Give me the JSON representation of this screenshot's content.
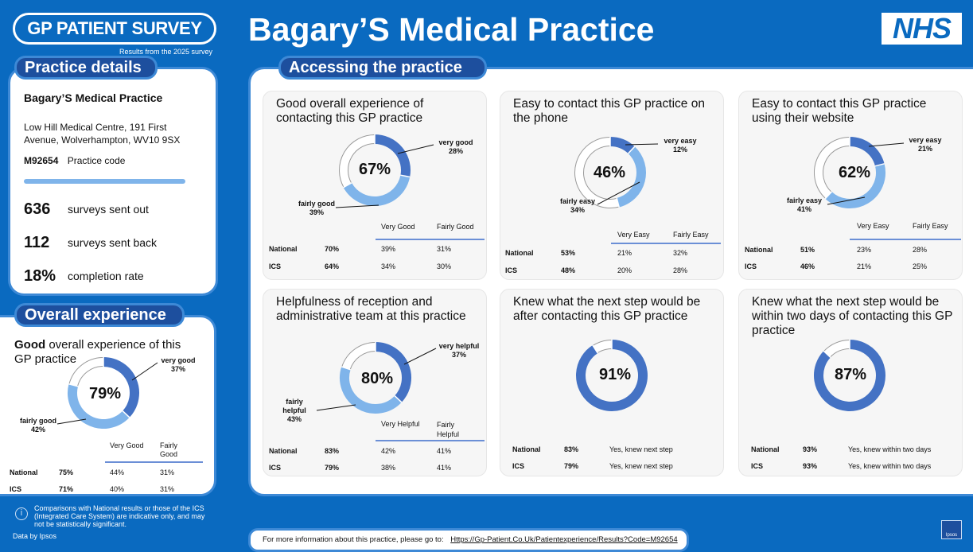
{
  "header": {
    "logo_text": "GP PATIENT SURVEY",
    "logo_sub": "Results from the 2025 survey",
    "title": "Bagary’S Medical Practice",
    "nhs_logo": "NHS"
  },
  "practice_details": {
    "tab": "Practice details",
    "name": "Bagary’S Medical Practice",
    "address_line1": "Low Hill Medical Centre, 191 First",
    "address_line2": "Avenue, Wolverhampton, WV10 9SX",
    "code": "M92654",
    "code_label": "Practice code",
    "stats": [
      {
        "value": "636",
        "label": "surveys sent out"
      },
      {
        "value": "112",
        "label": "surveys sent back"
      },
      {
        "value": "18%",
        "label": "completion rate"
      }
    ]
  },
  "overall": {
    "tab": "Overall experience",
    "title_bold": "Good",
    "title_rest": " overall experience of this",
    "title_line2": "GP practice",
    "pct": "79%",
    "pct_value": 79,
    "seg1_label": "very good",
    "seg1_pct": "37%",
    "seg1_value": 37,
    "seg2_label": "fairly good",
    "seg2_pct": "42%",
    "seg2_value": 42,
    "col1": "Very Good",
    "col2a": "Fairly",
    "col2b": "Good",
    "rows": [
      {
        "label": "National",
        "total": "75%",
        "c1": "44%",
        "c2": "31%"
      },
      {
        "label": "ICS",
        "total": "71%",
        "c1": "40%",
        "c2": "31%"
      }
    ]
  },
  "accessing": {
    "tab": "Accessing the practice",
    "cards": [
      {
        "title": "Good overall experience of contacting this GP practice",
        "pct": "67%",
        "seg1_label": "very good",
        "seg1_pct": "28%",
        "seg1_value": 28,
        "seg2_label": "fairly good",
        "seg2_pct": "39%",
        "seg2_value": 39,
        "col1": "Very Good",
        "col2": "Fairly Good",
        "rows": [
          {
            "label": "National",
            "total": "70%",
            "c1": "39%",
            "c2": "31%"
          },
          {
            "label": "ICS",
            "total": "64%",
            "c1": "34%",
            "c2": "30%"
          }
        ]
      },
      {
        "title": "Easy to contact this GP practice on the phone",
        "pct": "46%",
        "seg1_label": "very easy",
        "seg1_pct": "12%",
        "seg1_value": 12,
        "seg2_label": "fairly easy",
        "seg2_pct": "34%",
        "seg2_value": 34,
        "col1": "Very Easy",
        "col2": "Fairly Easy",
        "rows": [
          {
            "label": "National",
            "total": "53%",
            "c1": "21%",
            "c2": "32%"
          },
          {
            "label": "ICS",
            "total": "48%",
            "c1": "20%",
            "c2": "28%"
          }
        ]
      },
      {
        "title": "Easy to contact this GP practice using their website",
        "pct": "62%",
        "seg1_label": "very easy",
        "seg1_pct": "21%",
        "seg1_value": 21,
        "seg2_label": "fairly easy",
        "seg2_pct": "41%",
        "seg2_value": 41,
        "col1": "Very Easy",
        "col2": "Fairly Easy",
        "rows": [
          {
            "label": "National",
            "total": "51%",
            "c1": "23%",
            "c2": "28%"
          },
          {
            "label": "ICS",
            "total": "46%",
            "c1": "21%",
            "c2": "25%"
          }
        ]
      },
      {
        "title": "Helpfulness of reception and administrative team at this practice",
        "pct": "80%",
        "seg1_label": "very helpful",
        "seg1_pct": "37%",
        "seg1_value": 37,
        "seg2_label_a": "fairly",
        "seg2_label_b": "helpful",
        "seg2_pct": "43%",
        "seg2_value": 43,
        "col1": "Very Helpful",
        "col2a": "Fairly",
        "col2b": "Helpful",
        "rows": [
          {
            "label": "National",
            "total": "83%",
            "c1": "42%",
            "c2": "41%"
          },
          {
            "label": "ICS",
            "total": "79%",
            "c1": "38%",
            "c2": "41%"
          }
        ]
      },
      {
        "title": "Knew what the next step would be after contacting this GP practice",
        "pct": "91%",
        "value": 91,
        "rows": [
          {
            "label": "National",
            "total": "83%",
            "text": "Yes, knew next step"
          },
          {
            "label": "ICS",
            "total": "79%",
            "text": "Yes, knew next step"
          }
        ]
      },
      {
        "title": "Knew what the next step would be within two days of contacting this GP practice",
        "pct": "87%",
        "value": 87,
        "rows": [
          {
            "label": "National",
            "total": "93%",
            "text": "Yes, knew within two days"
          },
          {
            "label": "ICS",
            "total": "93%",
            "text": "Yes, knew within two days"
          }
        ]
      }
    ]
  },
  "disclaimer": {
    "icon": "info-icon",
    "text": "Comparisons with National results or those of the ICS (Integrated Care System) are indicative only, and may not be statistically significant."
  },
  "data_by": "Data by Ipsos",
  "footer": {
    "prefix": "For more information about this practice, please go to:",
    "link": "Https://Gp-Patient.Co.Uk/Patientexperience/Results?Code=M92654"
  },
  "ipsos_logo": "Ipsos",
  "colors": {
    "dark": "#4472c4",
    "light": "#7fb4ea",
    "empty": "#ffffff",
    "brand": "#0a6ac0"
  }
}
